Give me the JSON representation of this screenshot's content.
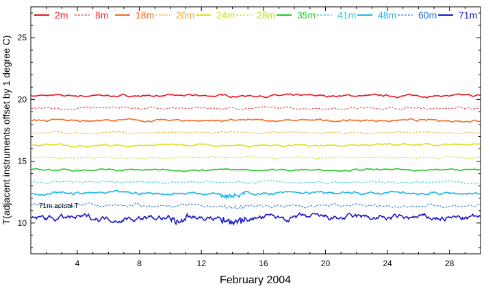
{
  "chart_data": {
    "type": "line",
    "title": "",
    "xlabel": "February 2004",
    "ylabel": "T(adjacent instruments offset by 1 degree C)",
    "xlim": [
      1,
      30
    ],
    "ylim": [
      7.5,
      27.5
    ],
    "x_ticks": [
      4,
      8,
      12,
      16,
      20,
      24,
      28
    ],
    "y_ticks": [
      10,
      15,
      20,
      25
    ],
    "annotation": "71m actual T",
    "series": [
      {
        "name": "2m",
        "color": "#e8101e",
        "dash": "solid",
        "offset": 20.3,
        "noise": 0.1
      },
      {
        "name": "8m",
        "color": "#e8303a",
        "dash": "dashed",
        "offset": 19.3,
        "noise": 0.1
      },
      {
        "name": "18m",
        "color": "#f06a22",
        "dash": "solid",
        "offset": 18.3,
        "noise": 0.1
      },
      {
        "name": "20m",
        "color": "#f5a623",
        "dash": "dashed",
        "offset": 17.3,
        "noise": 0.08
      },
      {
        "name": "24m",
        "color": "#d7e01a",
        "dash": "solid",
        "offset": 16.3,
        "noise": 0.1
      },
      {
        "name": "28m",
        "color": "#b6df2a",
        "dash": "dashed",
        "offset": 15.3,
        "noise": 0.08
      },
      {
        "name": "35m",
        "color": "#22c825",
        "dash": "solid",
        "offset": 14.3,
        "noise": 0.08
      },
      {
        "name": "41m",
        "color": "#2ec8c8",
        "dash": "dashed",
        "offset": 13.3,
        "noise": 0.1
      },
      {
        "name": "48m",
        "color": "#18b4e6",
        "dash": "solid",
        "offset": 12.4,
        "noise": 0.15
      },
      {
        "name": "60m",
        "color": "#1e6ed8",
        "dash": "dashed",
        "offset": 11.4,
        "noise": 0.15
      },
      {
        "name": "71m",
        "color": "#1414c8",
        "dash": "solid",
        "offset": 10.4,
        "noise": 0.3
      }
    ]
  }
}
